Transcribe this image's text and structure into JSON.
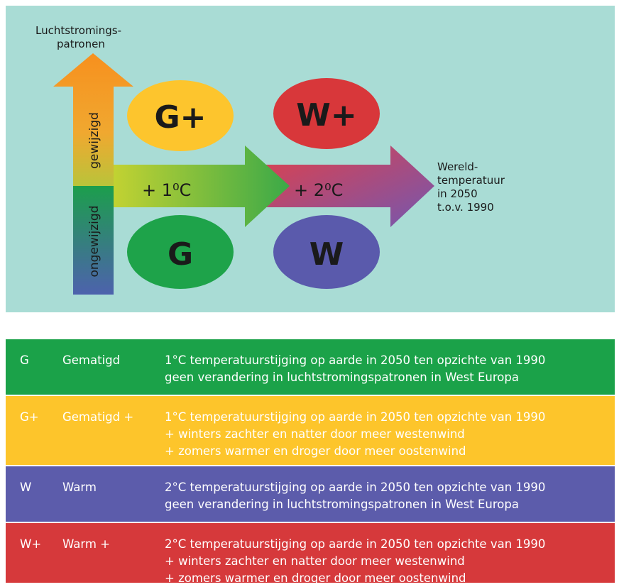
{
  "diagram": {
    "axis_label": [
      "Luchtstromings-",
      "patronen"
    ],
    "vertical_up": "gewijzigd",
    "vertical_down": "ongewijzigd",
    "arrow_1": "+ 1⁰C",
    "arrow_2": "+ 2⁰C",
    "side_label": [
      "Wereld-",
      "temperatuur",
      "in 2050",
      "t.o.v. 1990"
    ],
    "scenarios": [
      "G+",
      "W+",
      "G",
      "W"
    ]
  },
  "table": {
    "rows": [
      {
        "code": "G",
        "name": "Gematigd",
        "lines": [
          "1°C temperatuurstijging op aarde in 2050 ten opzichte van 1990",
          "geen verandering in luchtstromingspatronen in West Europa"
        ]
      },
      {
        "code": "G+",
        "name": "Gematigd +",
        "lines": [
          "1°C temperatuurstijging op aarde in 2050 ten opzichte van 1990",
          "+ winters zachter en natter door meer westenwind",
          "+ zomers warmer en droger door meer oostenwind"
        ]
      },
      {
        "code": "W",
        "name": "Warm",
        "lines": [
          "2°C temperatuurstijging op aarde in 2050 ten opzichte van 1990",
          "geen verandering in luchtstromingspatronen in West Europa"
        ]
      },
      {
        "code": "W+",
        "name": "Warm +",
        "lines": [
          "2°C temperatuurstijging op aarde in 2050 ten opzichte van 1990",
          "+ winters zachter en natter door meer westenwind",
          "+ zomers warmer en droger door meer oostenwind"
        ]
      }
    ]
  }
}
